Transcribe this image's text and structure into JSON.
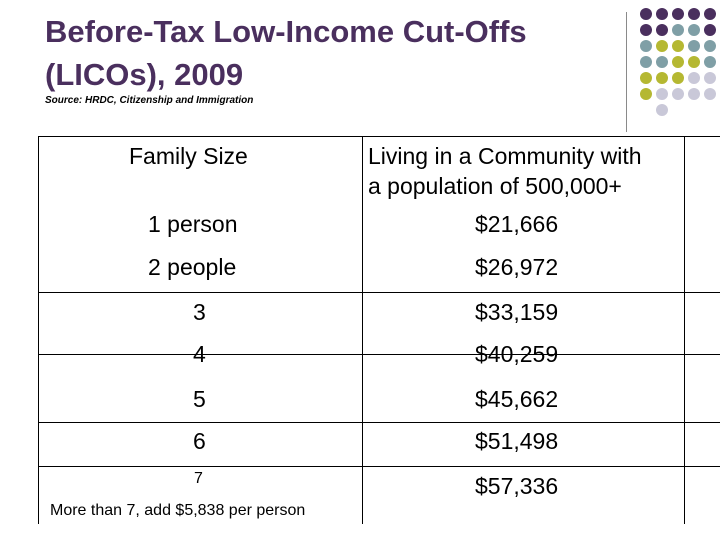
{
  "slide": {
    "title_line1": "Before-Tax Low-Income Cut-Offs",
    "title_line2": "(LICOs), 2009",
    "source": "Source:  HRDC, Citizenship and Immigration"
  },
  "table": {
    "header_col1": "Family Size",
    "header_col2_line1": "Living in a Community with",
    "header_col2_line2": "a population of 500,000+",
    "rows": [
      {
        "size": "1 person",
        "amount": "$21,666"
      },
      {
        "size": "2 people",
        "amount": "$26,972"
      },
      {
        "size": "3",
        "amount": "$33,159"
      },
      {
        "size": "4",
        "amount": "$40,259"
      },
      {
        "size": "5",
        "amount": "$45,662"
      },
      {
        "size": "6",
        "amount": "$51,498"
      },
      {
        "size": "7",
        "amount": "$57,336"
      }
    ],
    "footnote": "More than 7, add $5,838 per person"
  },
  "colors": {
    "title": "#4a2f5e",
    "dot_purple": "#4a2f5e",
    "dot_teal": "#7f9fa6",
    "dot_olive": "#b5b832",
    "dot_lavender": "#c9c8d8"
  }
}
